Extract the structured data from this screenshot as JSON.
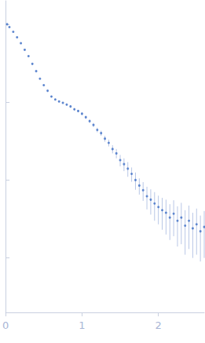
{
  "chart_data": {
    "type": "scatter",
    "color": "#3f6fc6",
    "marker": "circle",
    "log": "y",
    "grid": false,
    "tick_labels": "x",
    "xlim": [
      0,
      2.6
    ],
    "xticks": [
      0,
      1,
      2
    ],
    "ylim": [
      0.0002,
      2
    ],
    "yticks": [
      0.001,
      0.01,
      0.1,
      1
    ],
    "x": [
      0.02,
      0.05,
      0.1,
      0.15,
      0.2,
      0.25,
      0.3,
      0.35,
      0.4,
      0.45,
      0.5,
      0.55,
      0.6,
      0.65,
      0.7,
      0.75,
      0.8,
      0.85,
      0.9,
      0.95,
      1.0,
      1.05,
      1.1,
      1.15,
      1.2,
      1.25,
      1.3,
      1.35,
      1.4,
      1.45,
      1.5,
      1.55,
      1.6,
      1.65,
      1.7,
      1.75,
      1.8,
      1.85,
      1.9,
      1.95,
      2.0,
      2.05,
      2.1,
      2.15,
      2.2,
      2.25,
      2.3,
      2.35,
      2.4,
      2.45,
      2.5,
      2.55,
      2.6
    ],
    "values": [
      1.0,
      0.92,
      0.8,
      0.68,
      0.57,
      0.47,
      0.39,
      0.31,
      0.25,
      0.2,
      0.165,
      0.14,
      0.118,
      0.108,
      0.102,
      0.098,
      0.093,
      0.088,
      0.081,
      0.077,
      0.071,
      0.064,
      0.057,
      0.051,
      0.044,
      0.04,
      0.034,
      0.03,
      0.025,
      0.022,
      0.018,
      0.016,
      0.014,
      0.012,
      0.01,
      0.0085,
      0.0074,
      0.0062,
      0.0056,
      0.005,
      0.0045,
      0.0041,
      0.0038,
      0.0033,
      0.0037,
      0.003,
      0.0033,
      0.0026,
      0.003,
      0.0024,
      0.0027,
      0.0022,
      0.0025
    ],
    "errors": [
      0.02,
      0.015,
      0.012,
      0.01,
      0.008,
      0.007,
      0.006,
      0.005,
      0.004,
      0.004,
      0.003,
      0.003,
      0.003,
      0.003,
      0.003,
      0.003,
      0.003,
      0.003,
      0.003,
      0.003,
      0.003,
      0.003,
      0.003,
      0.003,
      0.003,
      0.003,
      0.003,
      0.003,
      0.003,
      0.003,
      0.003,
      0.003,
      0.003,
      0.0025,
      0.0025,
      0.002,
      0.002,
      0.002,
      0.002,
      0.002,
      0.0018,
      0.0018,
      0.0018,
      0.0016,
      0.0018,
      0.0016,
      0.0018,
      0.0015,
      0.0017,
      0.0014,
      0.0016,
      0.0013,
      0.0015
    ]
  }
}
